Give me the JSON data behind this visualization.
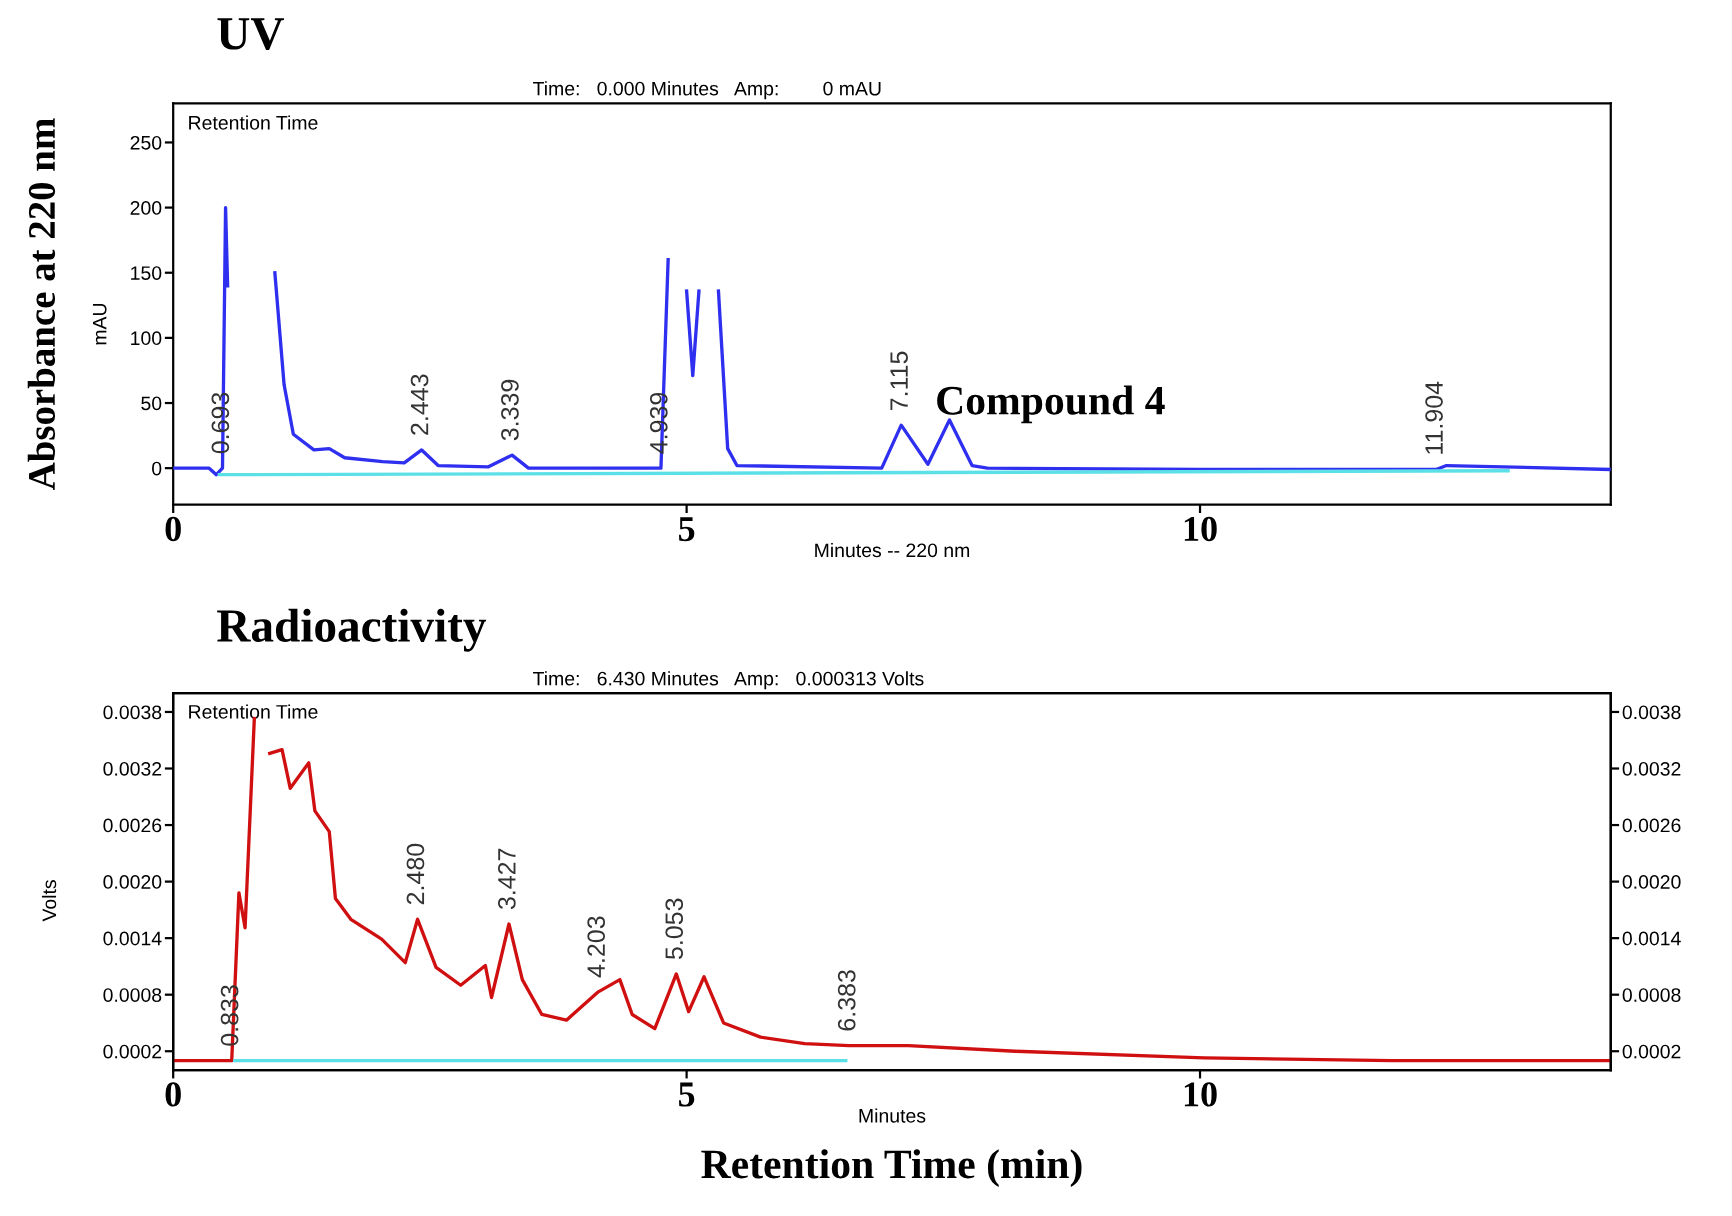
{
  "chart_data": [
    {
      "type": "line",
      "title": "UV",
      "subtitle": "Time:   0.000 Minutes   Amp:        0 mAU",
      "ylabel": "Absorbance at 220 nm",
      "xlabel": "Minutes -- 220 nm",
      "xlim": [
        0,
        14
      ],
      "ylim": [
        -28,
        280
      ],
      "xticks": [
        0,
        5,
        10
      ],
      "yticks": [
        0,
        50,
        100,
        150,
        200,
        250
      ],
      "grid": false,
      "legend": false,
      "series": [
        {
          "color": "#2f2ff0",
          "x": [
            0,
            0.35,
            0.42,
            0.48,
            0.51,
            0.53,
            0.6,
            0.94,
            0.99,
            1.08,
            1.17,
            1.37,
            1.52,
            1.67,
            2.04,
            2.25,
            2.42,
            2.58,
            3.07,
            3.3,
            3.46,
            4.75,
            4.82,
            4.87,
            4.96,
            5.0,
            5.06,
            5.12,
            5.16,
            5.21,
            5.31,
            5.4,
            5.49,
            6.9,
            7.09,
            7.35,
            7.56,
            7.78,
            7.93,
            10,
            12.3,
            12.4,
            14
          ],
          "values": [
            0,
            0,
            -5,
            0,
            200,
            140,
            null,
            null,
            150,
            64,
            26,
            14,
            15,
            8,
            5,
            4,
            14,
            2,
            1,
            10,
            0,
            0,
            160,
            null,
            null,
            136,
            71,
            136,
            null,
            null,
            136,
            15,
            2,
            0,
            33,
            3,
            37,
            2,
            0,
            -1,
            -1,
            2,
            -1
          ]
        },
        {
          "color": "#5ce0e8",
          "x": [
            0.45,
            13.0
          ],
          "values": [
            -5,
            -2
          ]
        }
      ],
      "annotations": [
        "Retention Time",
        "mAU",
        "Compound 4",
        {
          "text": "0.693",
          "x": 0.48,
          "y": 0
        },
        {
          "text": "2.443",
          "x": 2.42,
          "y": 14
        },
        {
          "text": "3.339",
          "x": 3.3,
          "y": 10
        },
        {
          "text": "4.939",
          "x": 4.75,
          "y": 0
        },
        {
          "text": "7.115",
          "x": 7.09,
          "y": 33
        },
        {
          "text": "11.904",
          "x": 12.3,
          "y": -1
        }
      ]
    },
    {
      "type": "line",
      "title": "Radioactivity",
      "subtitle": "Time:   6.430 Minutes   Amp:   0.000313 Volts",
      "xlabel": "Minutes",
      "xlim": [
        0,
        14
      ],
      "ylim": [
        0,
        0.004
      ],
      "xticks": [
        0,
        5,
        10
      ],
      "yticks": [
        0.0002,
        0.0008,
        0.0014,
        {
          "value": 0.002,
          "label": "0.0020"
        },
        0.0026,
        0.0032,
        0.0038
      ],
      "y2lim": [
        0,
        0.004
      ],
      "y2ticks": [
        0.0002,
        0.0008,
        0.0014,
        {
          "value": 0.002,
          "label": "0.0020"
        },
        0.0026,
        0.0032,
        0.0038
      ],
      "grid": false,
      "legend": false,
      "series": [
        {
          "color": "#d01010",
          "x": [
            0,
            0.57,
            0.64,
            0.7,
            0.79,
            0.81,
            0.88,
            0.94,
            1.06,
            1.14,
            1.32,
            1.38,
            1.52,
            1.58,
            1.73,
            2.03,
            2.26,
            2.38,
            2.56,
            2.8,
            3.04,
            3.1,
            3.27,
            3.4,
            3.59,
            3.83,
            4.14,
            4.35,
            4.47,
            4.69,
            4.9,
            5.02,
            5.17,
            5.36,
            5.72,
            6.15,
            6.58,
            7.16,
            8.2,
            10.04,
            11.87,
            14
          ],
          "values": [
            0.0001,
            0.0001,
            0.00188,
            0.00151,
            0.00373,
            null,
            null,
            0.00336,
            0.0034,
            0.00299,
            0.00326,
            0.00275,
            0.00253,
            0.00182,
            0.0016,
            0.00139,
            0.00114,
            0.0016,
            0.00109,
            0.0009,
            0.00111,
            0.00077,
            0.00155,
            0.00096,
            0.00059,
            0.00053,
            0.00083,
            0.00096,
            0.00059,
            0.00044,
            0.00102,
            0.00062,
            0.00099,
            0.0005,
            0.00035,
            0.00028,
            0.00026,
            0.00026,
            0.0002,
            0.00013,
            0.0001,
            0.0001
          ]
        },
        {
          "color": "#5ce0e8",
          "x": [
            0.6,
            6.55
          ],
          "values": [
            0.0001,
            0.0001
          ]
        }
      ],
      "annotations": [
        "Retention Time",
        "Volts",
        "Retention Time (min)",
        {
          "text": "0.833",
          "x": 0.57,
          "y": 0.0001
        },
        {
          "text": "2.480",
          "x": 2.38,
          "y": 0.0016
        },
        {
          "text": "3.427",
          "x": 3.27,
          "y": 0.00155
        },
        {
          "text": "4.203",
          "x": 4.14,
          "y": 0.00083
        },
        {
          "text": "5.053",
          "x": 4.9,
          "y": 0.00102
        },
        {
          "text": "6.383",
          "x": 6.58,
          "y": 0.00026
        }
      ]
    }
  ]
}
